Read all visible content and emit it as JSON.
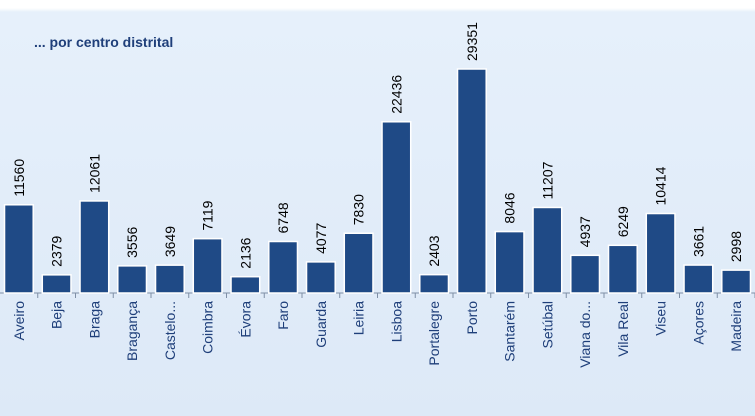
{
  "chart_data": {
    "type": "bar",
    "title": "... por centro distrital",
    "categories": [
      "Aveiro",
      "Beja",
      "Braga",
      "Bragança",
      "Castelo...",
      "Coimbra",
      "Évora",
      "Faro",
      "Guarda",
      "Leiria",
      "Lisboa",
      "Portalegre",
      "Porto",
      "Santarém",
      "Setúbal",
      "Viana do...",
      "Vila Real",
      "Viseu",
      "Açores",
      "Madeira"
    ],
    "values": [
      11560,
      2379,
      12061,
      3556,
      3649,
      7119,
      2136,
      6748,
      4077,
      7830,
      22436,
      2403,
      29351,
      8046,
      11207,
      4937,
      6249,
      10414,
      3661,
      2998
    ],
    "ylim": [
      0,
      30000
    ],
    "grid": false,
    "colors": {
      "bar": "#1f4a86",
      "bar_edge": "#ffffff",
      "axis": "#7f8fa6",
      "category_text": "#1f3f7a",
      "value_text": "#000000"
    }
  }
}
